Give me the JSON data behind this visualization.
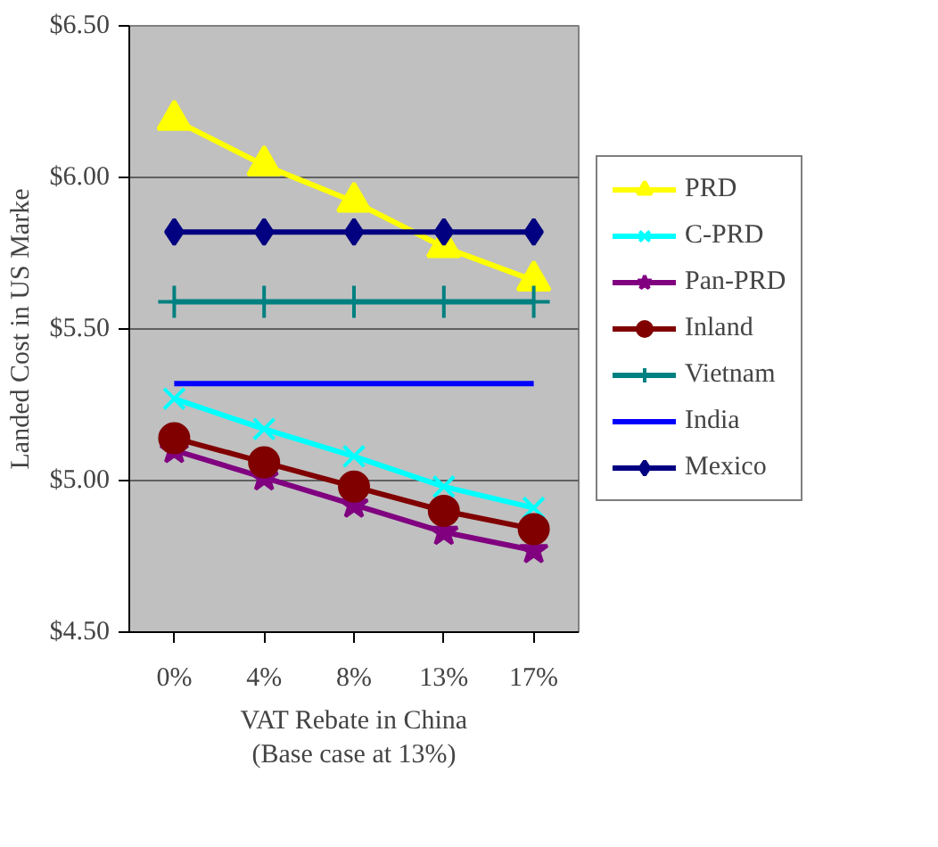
{
  "chart_data": {
    "type": "line",
    "categories": [
      "0%",
      "4%",
      "8%",
      "13%",
      "17%"
    ],
    "xlabel": "VAT Rebate in China\n(Base case at 13%)",
    "ylabel": "Landed Cost in US Marke",
    "ylim": [
      4.5,
      6.5
    ],
    "yticks": [
      {
        "value": 4.5,
        "label": "$4.50"
      },
      {
        "value": 5.0,
        "label": "$5.00"
      },
      {
        "value": 5.5,
        "label": "$5.50"
      },
      {
        "value": 6.0,
        "label": "$6.00"
      },
      {
        "value": 6.5,
        "label": "$6.50"
      }
    ],
    "grid": "y",
    "legend": "right",
    "series": [
      {
        "name": "PRD",
        "color": "#ffff00",
        "marker": "triangle",
        "values": [
          6.19,
          6.04,
          5.92,
          5.77,
          5.66
        ]
      },
      {
        "name": "C-PRD",
        "color": "#00ffff",
        "marker": "x",
        "values": [
          5.27,
          5.17,
          5.08,
          4.98,
          4.91
        ]
      },
      {
        "name": "Pan-PRD",
        "color": "#800080",
        "marker": "star",
        "values": [
          5.1,
          5.01,
          4.92,
          4.83,
          4.77
        ]
      },
      {
        "name": "Inland",
        "color": "#800000",
        "marker": "circle",
        "values": [
          5.14,
          5.06,
          4.98,
          4.9,
          4.84
        ]
      },
      {
        "name": "Vietnam",
        "color": "#008080",
        "marker": "cross",
        "values": [
          5.59,
          5.59,
          5.59,
          5.59,
          5.59
        ]
      },
      {
        "name": "India",
        "color": "#0000ff",
        "marker": "none",
        "values": [
          5.32,
          5.32,
          5.32,
          5.32,
          5.32
        ]
      },
      {
        "name": "Mexico",
        "color": "#000080",
        "marker": "diamond",
        "values": [
          5.82,
          5.82,
          5.82,
          5.82,
          5.82
        ]
      }
    ]
  }
}
